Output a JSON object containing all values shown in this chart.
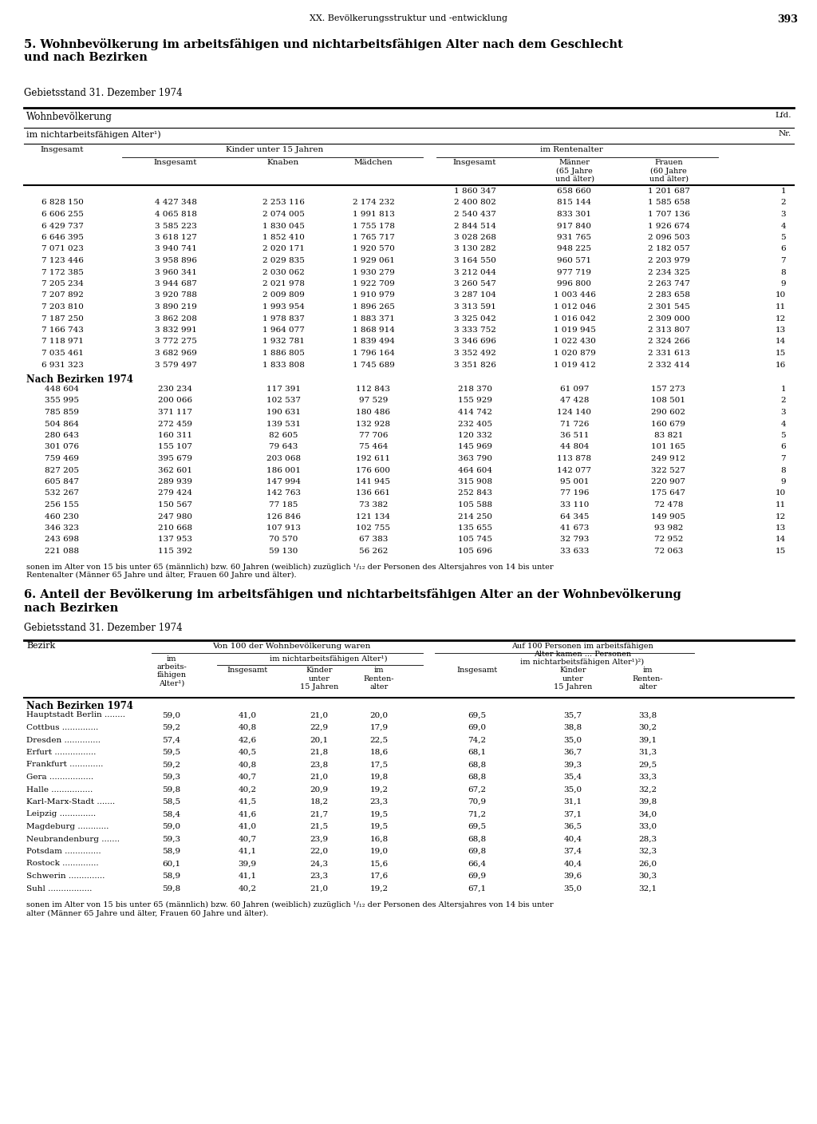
{
  "page_header": "XX. Bevölkerungsstruktur und -entwicklung",
  "page_number": "393",
  "section5_title": "5. Wohnbevölkerung im arbeitsfähigen und nichtarbeitsfähigen Alter nach dem Geschlecht\nund nach Bezirken",
  "gebietsstand": "Gebietsstand 31. Dezember 1974",
  "table1_headers": {
    "col1": "Wohnbevölkerung",
    "col_lfd": "Lfd.\nNr.",
    "sub1": "im nichtarbeitsfähigen Alter¹)",
    "sub_insgesamt": "Insgesamt",
    "sub_kinder": "Kinder unter 15 Jahren",
    "sub_kinder_ins": "Insgesamt",
    "sub_kinder_knaben": "Knaben",
    "sub_kinder_maedchen": "Mädchen",
    "sub_renten": "im Rentenalter",
    "sub_renten_ins": "Insgesamt",
    "sub_renten_maenner": "Männer\n(65 Jahre\nund älter)",
    "sub_renten_frauen": "Frauen\n(60 Jahre\nund älter)"
  },
  "table1_data_jahresreihe": [
    [
      "",
      "",
      "",
      "",
      "1 860 347",
      "658 660",
      "1 201 687",
      "1"
    ],
    [
      "6 828 150",
      "4 427 348",
      "2 253 116",
      "2 174 232",
      "2 400 802",
      "815 144",
      "1 585 658",
      "2"
    ],
    [
      "6 606 255",
      "4 065 818",
      "2 074 005",
      "1 991 813",
      "2 540 437",
      "833 301",
      "1 707 136",
      "3"
    ],
    [
      "6 429 737",
      "3 585 223",
      "1 830 045",
      "1 755 178",
      "2 844 514",
      "917 840",
      "1 926 674",
      "4"
    ],
    [
      "6 646 395",
      "3 618 127",
      "1 852 410",
      "1 765 717",
      "3 028 268",
      "931 765",
      "2 096 503",
      "5"
    ],
    [
      "7 071 023",
      "3 940 741",
      "2 020 171",
      "1 920 570",
      "3 130 282",
      "948 225",
      "2 182 057",
      "6"
    ],
    [
      "7 123 446",
      "3 958 896",
      "2 029 835",
      "1 929 061",
      "3 164 550",
      "960 571",
      "2 203 979",
      "7"
    ],
    [
      "7 172 385",
      "3 960 341",
      "2 030 062",
      "1 930 279",
      "3 212 044",
      "977 719",
      "2 234 325",
      "8"
    ],
    [
      "7 205 234",
      "3 944 687",
      "2 021 978",
      "1 922 709",
      "3 260 547",
      "996 800",
      "2 263 747",
      "9"
    ],
    [
      "7 207 892",
      "3 920 788",
      "2 009 809",
      "1 910 979",
      "3 287 104",
      "1 003 446",
      "2 283 658",
      "10"
    ],
    [
      "7 203 810",
      "3 890 219",
      "1 993 954",
      "1 896 265",
      "3 313 591",
      "1 012 046",
      "2 301 545",
      "11"
    ],
    [
      "7 187 250",
      "3 862 208",
      "1 978 837",
      "1 883 371",
      "3 325 042",
      "1 016 042",
      "2 309 000",
      "12"
    ],
    [
      "7 166 743",
      "3 832 991",
      "1 964 077",
      "1 868 914",
      "3 333 752",
      "1 019 945",
      "2 313 807",
      "13"
    ],
    [
      "7 118 971",
      "3 772 275",
      "1 932 781",
      "1 839 494",
      "3 346 696",
      "1 022 430",
      "2 324 266",
      "14"
    ],
    [
      "7 035 461",
      "3 682 969",
      "1 886 805",
      "1 796 164",
      "3 352 492",
      "1 020 879",
      "2 331 613",
      "15"
    ],
    [
      "6 931 323",
      "3 579 497",
      "1 833 808",
      "1 745 689",
      "3 351 826",
      "1 019 412",
      "2 332 414",
      "16"
    ]
  ],
  "table1_bezirke_header": "Nach Bezirken 1974",
  "table1_bezirke": [
    [
      "448 604",
      "230 234",
      "117 391",
      "112 843",
      "218 370",
      "61 097",
      "157 273",
      "1"
    ],
    [
      "355 995",
      "200 066",
      "102 537",
      "97 529",
      "155 929",
      "47 428",
      "108 501",
      "2"
    ],
    [
      "785 859",
      "371 117",
      "190 631",
      "180 486",
      "414 742",
      "124 140",
      "290 602",
      "3"
    ],
    [
      "504 864",
      "272 459",
      "139 531",
      "132 928",
      "232 405",
      "71 726",
      "160 679",
      "4"
    ],
    [
      "280 643",
      "160 311",
      "82 605",
      "77 706",
      "120 332",
      "36 511",
      "83 821",
      "5"
    ],
    [
      "301 076",
      "155 107",
      "79 643",
      "75 464",
      "145 969",
      "44 804",
      "101 165",
      "6"
    ],
    [
      "759 469",
      "395 679",
      "203 068",
      "192 611",
      "363 790",
      "113 878",
      "249 912",
      "7"
    ],
    [
      "827 205",
      "362 601",
      "186 001",
      "176 600",
      "464 604",
      "142 077",
      "322 527",
      "8"
    ],
    [
      "605 847",
      "289 939",
      "147 994",
      "141 945",
      "315 908",
      "95 001",
      "220 907",
      "9"
    ],
    [
      "532 267",
      "279 424",
      "142 763",
      "136 661",
      "252 843",
      "77 196",
      "175 647",
      "10"
    ],
    [
      "256 155",
      "150 567",
      "77 185",
      "73 382",
      "105 588",
      "33 110",
      "72 478",
      "11"
    ],
    [
      "460 230",
      "247 980",
      "126 846",
      "121 134",
      "214 250",
      "64 345",
      "149 905",
      "12"
    ],
    [
      "346 323",
      "210 668",
      "107 913",
      "102 755",
      "135 655",
      "41 673",
      "93 982",
      "13"
    ],
    [
      "243 698",
      "137 953",
      "70 570",
      "67 383",
      "105 745",
      "32 793",
      "72 952",
      "14"
    ],
    [
      "221 088",
      "115 392",
      "59 130",
      "56 262",
      "105 696",
      "33 633",
      "72 063",
      "15"
    ]
  ],
  "footnote1": "sonen im Alter von 15 bis unter 65 (männlich) bzw. 60 Jahren (weiblich) zuzüglich ¹/₁₂ der Personen des Altersjahres von 14 bis unter\nRentenalter (Männer 65 Jahre und älter, Frauen 60 Jahre und älter).",
  "section6_title": "6. Anteil der Bevölkerung im arbeitsfähigen und nichtarbeitsfähigen Alter an der Wohnbevölkerung\nnach Bezirken",
  "gebietsstand2": "Gebietsstand 31. Dezember 1974",
  "table2_col_bezirk": "Bezirk",
  "table2_col1": "Von 100 der Wohnbevölkerung waren",
  "table2_sub1": "im\narbeits-\nfähigen\nAlter¹)",
  "table2_sub2": "im nichtarbeitsfähigen Alter¹)",
  "table2_sub2a": "Insgesamt",
  "table2_sub2b": "Kinder\nunter\n15 Jahren",
  "table2_sub2c": "im\nRenten-\nalter",
  "table2_col2": "Auf 100 Personen im arbeitsfähigen\nAlter kamen ... Personen\nim nichtarbeitsfähigen Alter¹)²)",
  "table2_sub3a": "Insgesamt",
  "table2_sub3b": "Kinder\nunter\n15 Jahren",
  "table2_sub3c": "im\nRenten-\nalter",
  "table2_bezirke_header": "Nach Bezirken 1974",
  "table2_data": [
    [
      "Hauptstadt Berlin ........",
      "59,0",
      "41,0",
      "21,0",
      "20,0",
      "69,5",
      "35,7",
      "33,8"
    ],
    [
      "Cottbus ..............",
      "59,2",
      "40,8",
      "22,9",
      "17,9",
      "69,0",
      "38,8",
      "30,2"
    ],
    [
      "Dresden ..............",
      "57,4",
      "42,6",
      "20,1",
      "22,5",
      "74,2",
      "35,0",
      "39,1"
    ],
    [
      "Erfurt ................",
      "59,5",
      "40,5",
      "21,8",
      "18,6",
      "68,1",
      "36,7",
      "31,3"
    ],
    [
      "Frankfurt .............",
      "59,2",
      "40,8",
      "23,8",
      "17,5",
      "68,8",
      "39,3",
      "29,5"
    ],
    [
      "Gera .................",
      "59,3",
      "40,7",
      "21,0",
      "19,8",
      "68,8",
      "35,4",
      "33,3"
    ],
    [
      "Halle ................",
      "59,8",
      "40,2",
      "20,9",
      "19,2",
      "67,2",
      "35,0",
      "32,2"
    ],
    [
      "Karl-Marx-Stadt .......",
      "58,5",
      "41,5",
      "18,2",
      "23,3",
      "70,9",
      "31,1",
      "39,8"
    ],
    [
      "Leipzig ..............",
      "58,4",
      "41,6",
      "21,7",
      "19,5",
      "71,2",
      "37,1",
      "34,0"
    ],
    [
      "Magdeburg ............",
      "59,0",
      "41,0",
      "21,5",
      "19,5",
      "69,5",
      "36,5",
      "33,0"
    ],
    [
      "Neubrandenburg .......",
      "59,3",
      "40,7",
      "23,9",
      "16,8",
      "68,8",
      "40,4",
      "28,3"
    ],
    [
      "Potsdam ..............",
      "58,9",
      "41,1",
      "22,0",
      "19,0",
      "69,8",
      "37,4",
      "32,3"
    ],
    [
      "Rostock ..............",
      "60,1",
      "39,9",
      "24,3",
      "15,6",
      "66,4",
      "40,4",
      "26,0"
    ],
    [
      "Schwerin ..............",
      "58,9",
      "41,1",
      "23,3",
      "17,6",
      "69,9",
      "39,6",
      "30,3"
    ],
    [
      "Suhl .................",
      "59,8",
      "40,2",
      "21,0",
      "19,2",
      "67,1",
      "35,0",
      "32,1"
    ]
  ],
  "footnote2": "sonen im Alter von 15 bis unter 65 (männlich) bzw. 60 Jahren (weiblich) zuzüglich ¹/₁₂ der Personen des Altersjahres von 14 bis unter\nalter (Männer 65 Jahre und älter, Frauen 60 Jahre und älter)."
}
